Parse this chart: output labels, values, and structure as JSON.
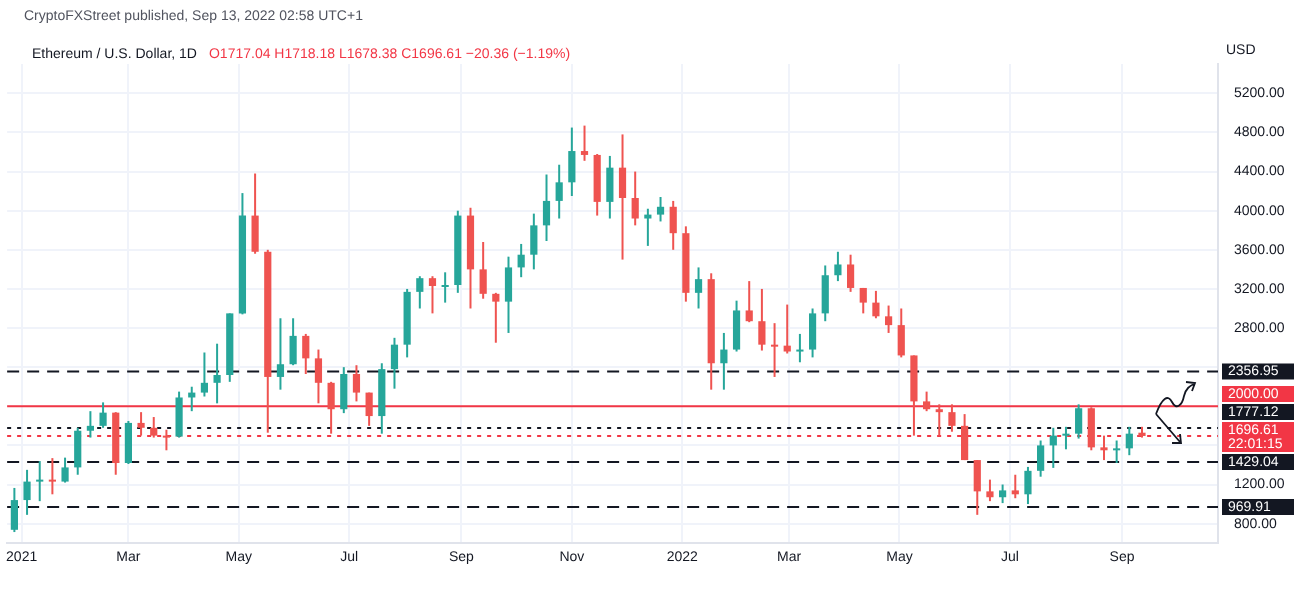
{
  "chart_data": {
    "type": "candlestick",
    "title": "Ethereum / U.S. Dollar, 1D",
    "subtitle": "O1717.04 H1718.18 L1678.38 C1696.61 −20.36 (−1.19%)",
    "ylabel": "USD",
    "annotations": [
      "CryptoFXStreet published, Sep 13, 2022 02:58 UTC+1"
    ],
    "xlim": [
      "2020-12-24",
      "2022-10-24"
    ],
    "xticks": [
      {
        "value": "2021-01-01",
        "label": "2021"
      },
      {
        "value": "2021-03-01",
        "label": "Mar"
      },
      {
        "value": "2021-05-01",
        "label": "May"
      },
      {
        "value": "2021-07-01",
        "label": "Jul"
      },
      {
        "value": "2021-09-01",
        "label": "Sep"
      },
      {
        "value": "2021-11-01",
        "label": "Nov"
      },
      {
        "value": "2022-01-01",
        "label": "2022"
      },
      {
        "value": "2022-03-01",
        "label": "Mar"
      },
      {
        "value": "2022-05-01",
        "label": "May"
      },
      {
        "value": "2022-07-01",
        "label": "Jul"
      },
      {
        "value": "2022-09-01",
        "label": "Sep"
      }
    ],
    "ylim": [
      600,
      5500
    ],
    "yticks": [
      {
        "value": 800,
        "label": "800.00"
      },
      {
        "value": 1200,
        "label": "1200.00"
      },
      {
        "value": 1600,
        "label": null
      },
      {
        "value": 2000,
        "label": null
      },
      {
        "value": 2400,
        "label": null
      },
      {
        "value": 2800,
        "label": "2800.00"
      },
      {
        "value": 3200,
        "label": "3200.00"
      },
      {
        "value": 3600,
        "label": "3600.00"
      },
      {
        "value": 4000,
        "label": "4000.00"
      },
      {
        "value": 4400,
        "label": "4400.00"
      },
      {
        "value": 4800,
        "label": "4800.00"
      },
      {
        "value": 5200,
        "label": "5200.00"
      }
    ],
    "grid": true,
    "legend": false,
    "ref_lines": [
      {
        "axis": "y",
        "value": 2356.95,
        "label": "2356.95",
        "color": "#131722",
        "line_style": "dashed"
      },
      {
        "axis": "y",
        "value": 2000,
        "label": "2000.00",
        "color": "#f23645",
        "line_style": "solid"
      },
      {
        "axis": "y",
        "value": 1777.12,
        "label": "1777.12",
        "color": "#131722",
        "line_style": "dotted"
      },
      {
        "axis": "y",
        "value": 1696.61,
        "label": "1696.61\n22:01:15",
        "color": "#f23645",
        "line_style": "dotted"
      },
      {
        "axis": "y",
        "value": 1429.04,
        "label": "1429.04",
        "color": "#131722",
        "line_style": "dashed"
      },
      {
        "axis": "y",
        "value": 969.91,
        "label": "969.91",
        "color": "#131722",
        "line_style": "dashed"
      }
    ],
    "series": [
      {
        "color": "#26a69a",
        "x": [
          "2020-12-28",
          "2021-01-04",
          "2021-01-11",
          "2021-01-25",
          "2021-02-01",
          "2021-02-08",
          "2021-02-15",
          "2021-03-01",
          "2021-03-29",
          "2021-04-05",
          "2021-04-12",
          "2021-04-19",
          "2021-04-26",
          "2021-05-03",
          "2021-05-24",
          "2021-05-31",
          "2021-06-28",
          "2021-07-19",
          "2021-07-26",
          "2021-08-02",
          "2021-08-09",
          "2021-08-23",
          "2021-08-30",
          "2021-09-27",
          "2021-10-04",
          "2021-10-11",
          "2021-10-18",
          "2021-10-25",
          "2021-11-01",
          "2021-11-22",
          "2021-12-13",
          "2021-12-20",
          "2022-01-10",
          "2022-01-24",
          "2022-01-31",
          "2022-03-07",
          "2022-03-14",
          "2022-03-21",
          "2022-03-28",
          "2022-06-27",
          "2022-07-11",
          "2022-07-18",
          "2022-07-25",
          "2022-08-01",
          "2022-08-08",
          "2022-08-29",
          "2022-09-05"
        ],
        "ohlc": [
          [
            737,
            1165,
            714,
            1041
          ],
          [
            1041,
            1350,
            890,
            1230
          ],
          [
            1230,
            1440,
            1030,
            1250
          ],
          [
            1230,
            1475,
            1220,
            1375
          ],
          [
            1375,
            1780,
            1300,
            1750
          ],
          [
            1750,
            1950,
            1680,
            1800
          ],
          [
            1800,
            2040,
            1780,
            1935
          ],
          [
            1420,
            1850,
            1410,
            1830
          ],
          [
            1690,
            2150,
            1680,
            2090
          ],
          [
            2090,
            2200,
            1950,
            2140
          ],
          [
            2140,
            2550,
            2100,
            2240
          ],
          [
            2240,
            2640,
            2030,
            2320
          ],
          [
            2320,
            2950,
            2250,
            2950
          ],
          [
            2950,
            4180,
            2940,
            3950
          ],
          [
            2300,
            2900,
            2170,
            2430
          ],
          [
            2430,
            2900,
            2420,
            2720
          ],
          [
            1970,
            2400,
            1930,
            2330
          ],
          [
            1900,
            2440,
            1720,
            2380
          ],
          [
            2380,
            2700,
            2180,
            2630
          ],
          [
            2630,
            3200,
            2500,
            3170
          ],
          [
            3170,
            3330,
            3000,
            3310
          ],
          [
            3230,
            3370,
            3060,
            3240
          ],
          [
            3240,
            4000,
            3160,
            3950
          ],
          [
            3070,
            3530,
            2750,
            3420
          ],
          [
            3420,
            3660,
            3320,
            3550
          ],
          [
            3550,
            3970,
            3400,
            3850
          ],
          [
            3850,
            4370,
            3690,
            4100
          ],
          [
            4100,
            4470,
            3920,
            4290
          ],
          [
            4290,
            4850,
            4150,
            4610
          ],
          [
            4090,
            4560,
            3920,
            4440
          ],
          [
            3920,
            4020,
            3640,
            3960
          ],
          [
            3960,
            4140,
            3890,
            4040
          ],
          [
            3160,
            3420,
            3000,
            3300
          ],
          [
            2440,
            2750,
            2170,
            2580
          ],
          [
            2580,
            3080,
            2560,
            2980
          ],
          [
            2560,
            2740,
            2450,
            2580
          ],
          [
            2580,
            3000,
            2500,
            2950
          ],
          [
            2950,
            3440,
            2870,
            3340
          ],
          [
            3340,
            3580,
            3280,
            3450
          ],
          [
            1070,
            1200,
            1010,
            1140
          ],
          [
            1100,
            1380,
            1000,
            1340
          ],
          [
            1340,
            1650,
            1280,
            1600
          ],
          [
            1600,
            1780,
            1370,
            1700
          ],
          [
            1700,
            1790,
            1560,
            1720
          ],
          [
            1720,
            2020,
            1670,
            1980
          ],
          [
            1550,
            1650,
            1420,
            1570
          ],
          [
            1570,
            1790,
            1500,
            1720
          ]
        ]
      },
      {
        "color": "#ef5350",
        "x": [
          "2021-01-18",
          "2021-02-22",
          "2021-03-08",
          "2021-03-15",
          "2021-03-22",
          "2021-05-10",
          "2021-05-17",
          "2021-06-07",
          "2021-06-14",
          "2021-06-21",
          "2021-07-05",
          "2021-07-12",
          "2021-08-16",
          "2021-09-06",
          "2021-09-13",
          "2021-09-20",
          "2021-11-08",
          "2021-11-15",
          "2021-11-29",
          "2021-12-06",
          "2021-12-27",
          "2022-01-03",
          "2022-01-17",
          "2022-02-07",
          "2022-02-14",
          "2022-02-21",
          "2022-02-28",
          "2022-04-04",
          "2022-04-11",
          "2022-04-18",
          "2022-04-25",
          "2022-05-02",
          "2022-05-09",
          "2022-05-16",
          "2022-05-23",
          "2022-05-30",
          "2022-06-06",
          "2022-06-13",
          "2022-06-20",
          "2022-07-04",
          "2022-08-15",
          "2022-08-22",
          "2022-09-12"
        ],
        "ohlc": [
          [
            1250,
            1470,
            1100,
            1230
          ],
          [
            1935,
            1940,
            1300,
            1420
          ],
          [
            1830,
            1940,
            1700,
            1780
          ],
          [
            1780,
            1890,
            1680,
            1700
          ],
          [
            1700,
            1760,
            1550,
            1690
          ],
          [
            3950,
            4380,
            3560,
            3580
          ],
          [
            3580,
            3600,
            1730,
            2300
          ],
          [
            2720,
            2740,
            2330,
            2490
          ],
          [
            2490,
            2580,
            2030,
            2240
          ],
          [
            2240,
            2250,
            1720,
            1970
          ],
          [
            2330,
            2420,
            2050,
            2140
          ],
          [
            2140,
            2140,
            1800,
            1900
          ],
          [
            3310,
            3330,
            2950,
            3230
          ],
          [
            3950,
            4030,
            3000,
            3400
          ],
          [
            3400,
            3680,
            3100,
            3150
          ],
          [
            3150,
            3160,
            2650,
            3070
          ],
          [
            4610,
            4870,
            4510,
            4570
          ],
          [
            4570,
            4580,
            3950,
            4090
          ],
          [
            4440,
            4780,
            3500,
            4130
          ],
          [
            4130,
            4400,
            3850,
            3920
          ],
          [
            4040,
            4100,
            3600,
            3770
          ],
          [
            3770,
            3840,
            3070,
            3160
          ],
          [
            3300,
            3360,
            2170,
            2440
          ],
          [
            2980,
            3280,
            2860,
            2870
          ],
          [
            2870,
            3200,
            2570,
            2630
          ],
          [
            2630,
            2850,
            2300,
            2620
          ],
          [
            2620,
            3040,
            2540,
            2560
          ],
          [
            3450,
            3550,
            3170,
            3210
          ],
          [
            3210,
            3210,
            2950,
            3060
          ],
          [
            3060,
            3180,
            2900,
            2920
          ],
          [
            2920,
            3030,
            2750,
            2830
          ],
          [
            2830,
            3000,
            2500,
            2520
          ],
          [
            2520,
            2520,
            1700,
            2050
          ],
          [
            2050,
            2150,
            1950,
            1970
          ],
          [
            1970,
            2020,
            1700,
            1940
          ],
          [
            1940,
            2020,
            1740,
            1800
          ],
          [
            1800,
            1920,
            1450,
            1450
          ],
          [
            1450,
            1450,
            890,
            1130
          ],
          [
            1130,
            1250,
            1030,
            1070
          ],
          [
            1140,
            1300,
            1060,
            1100
          ],
          [
            1980,
            1990,
            1550,
            1580
          ],
          [
            1580,
            1700,
            1450,
            1550
          ],
          [
            1730,
            1790,
            1680,
            1696.61
          ]
        ]
      }
    ]
  }
}
